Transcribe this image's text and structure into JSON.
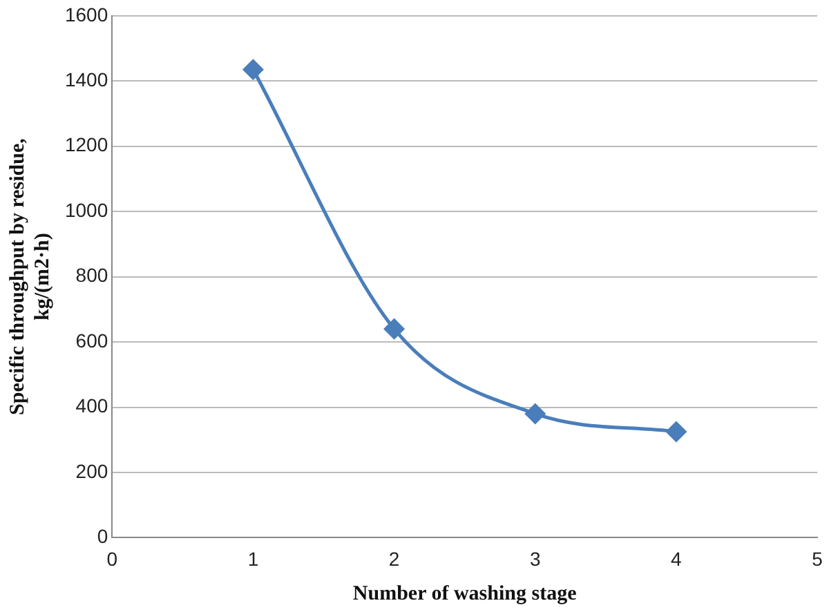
{
  "chart_data": {
    "type": "line",
    "xlabel": "Number of washing stage",
    "ylabel": "Specific throughput by residue,\nkg/(m2·h)",
    "x": [
      1,
      2,
      3,
      4
    ],
    "series": [
      {
        "color": "#4a7ebb",
        "values": [
          1435,
          640,
          380,
          325
        ]
      }
    ],
    "xlim": [
      0,
      5
    ],
    "xticks": [
      0,
      1,
      2,
      3,
      4,
      5
    ],
    "ylim": [
      0,
      1600
    ],
    "yticks": [
      0,
      200,
      400,
      600,
      800,
      1000,
      1200,
      1400,
      1600
    ],
    "grid": "y",
    "legend": false,
    "marker": "diamond",
    "line_style": "solid"
  }
}
